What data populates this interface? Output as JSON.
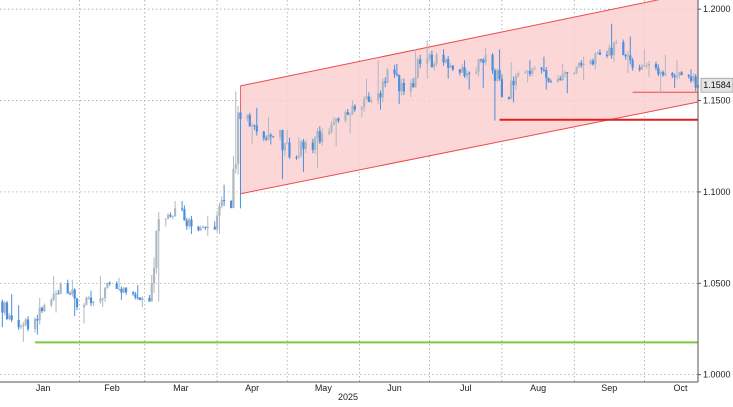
{
  "chart_data": {
    "type": "candlestick",
    "title": "",
    "xlabel": "",
    "ylabel": "",
    "year_label": "2025",
    "x_tick_labels": [
      "Jan",
      "Feb",
      "Mar",
      "Apr",
      "May",
      "Jun",
      "Jul",
      "Aug",
      "Sep",
      "Oct"
    ],
    "y_tick_labels": [
      "1.2000",
      "1.1500",
      "1.1000",
      "1.0500",
      "1.0000"
    ],
    "y_tick_values": [
      1.2,
      1.15,
      1.1,
      1.05,
      1.0
    ],
    "ylim": [
      0.996,
      1.205
    ],
    "xlim": [
      "2024-12-29",
      "2025-10-24"
    ],
    "grid": true,
    "last_price_label": "1.1584",
    "last_price": 1.1584,
    "colors": {
      "up": "#aeb8c3",
      "down": "#4a8fe0",
      "channel_fill": "#fbd0d0",
      "channel_line": "#f04848",
      "support_red": "#e02020",
      "support_green": "#7ac943",
      "grid": "#9a9a9a"
    },
    "channel": {
      "start_date": "2025-04-11",
      "end_date": "2025-10-24",
      "upper": [
        1.158,
        1.2096
      ],
      "lower": [
        1.099,
        1.1492
      ]
    },
    "support_lines": [
      {
        "color": "red",
        "level": 1.1395,
        "from": "2025-07-31",
        "to": "2025-10-24"
      },
      {
        "color": "green",
        "level": 1.0177,
        "from": "2025-01-13",
        "to": "2025-10-24"
      },
      {
        "color": "light-red",
        "level": 1.1545,
        "from": "2025-09-26",
        "to": "2025-10-24"
      }
    ],
    "series": [
      {
        "dates": [
          "2024-12-30",
          "2025-01-06",
          "2025-01-13",
          "2025-01-20",
          "2025-01-27",
          "2025-02-03",
          "2025-02-10",
          "2025-02-17",
          "2025-02-24",
          "2025-03-03",
          "2025-03-10",
          "2025-03-17",
          "2025-03-24",
          "2025-03-31",
          "2025-04-07",
          "2025-04-14",
          "2025-04-21",
          "2025-04-28",
          "2025-05-05",
          "2025-05-12",
          "2025-05-19",
          "2025-05-26",
          "2025-06-02",
          "2025-06-09",
          "2025-06-16",
          "2025-06-23",
          "2025-06-30",
          "2025-07-07",
          "2025-07-14",
          "2025-07-21",
          "2025-07-28",
          "2025-08-04",
          "2025-08-11",
          "2025-08-18",
          "2025-08-25",
          "2025-09-01",
          "2025-09-08",
          "2025-09-15",
          "2025-09-22",
          "2025-09-29",
          "2025-10-06",
          "2025-10-13",
          "2025-10-20"
        ],
        "open": [
          1.04,
          1.03,
          1.025,
          1.038,
          1.05,
          1.037,
          1.04,
          1.05,
          1.045,
          1.042,
          1.085,
          1.091,
          1.081,
          1.081,
          1.095,
          1.14,
          1.133,
          1.13,
          1.119,
          1.127,
          1.132,
          1.139,
          1.145,
          1.15,
          1.167,
          1.155,
          1.17,
          1.175,
          1.167,
          1.165,
          1.175,
          1.152,
          1.165,
          1.168,
          1.16,
          1.165,
          1.17,
          1.175,
          1.182,
          1.168,
          1.17,
          1.165,
          1.164
        ],
        "close": [
          1.03,
          1.025,
          1.038,
          1.05,
          1.037,
          1.04,
          1.05,
          1.045,
          1.042,
          1.085,
          1.091,
          1.081,
          1.081,
          1.095,
          1.14,
          1.133,
          1.13,
          1.119,
          1.127,
          1.132,
          1.139,
          1.145,
          1.15,
          1.167,
          1.155,
          1.17,
          1.175,
          1.167,
          1.165,
          1.175,
          1.152,
          1.165,
          1.168,
          1.16,
          1.165,
          1.17,
          1.175,
          1.182,
          1.168,
          1.17,
          1.165,
          1.164,
          1.1584
        ],
        "high": [
          1.044,
          1.038,
          1.042,
          1.054,
          1.052,
          1.046,
          1.054,
          1.053,
          1.049,
          1.089,
          1.095,
          1.095,
          1.087,
          1.104,
          1.155,
          1.146,
          1.141,
          1.134,
          1.13,
          1.136,
          1.141,
          1.15,
          1.162,
          1.172,
          1.17,
          1.178,
          1.183,
          1.178,
          1.172,
          1.179,
          1.178,
          1.171,
          1.172,
          1.174,
          1.17,
          1.174,
          1.178,
          1.192,
          1.185,
          1.178,
          1.175,
          1.172,
          1.167
        ],
        "low": [
          1.026,
          1.018,
          1.022,
          1.034,
          1.032,
          1.028,
          1.037,
          1.041,
          1.037,
          1.04,
          1.081,
          1.077,
          1.076,
          1.077,
          1.091,
          1.126,
          1.126,
          1.107,
          1.111,
          1.113,
          1.125,
          1.132,
          1.141,
          1.145,
          1.148,
          1.152,
          1.162,
          1.162,
          1.156,
          1.157,
          1.139,
          1.149,
          1.16,
          1.156,
          1.154,
          1.161,
          1.167,
          1.171,
          1.165,
          1.163,
          1.154,
          1.157,
          1.155
        ]
      }
    ]
  }
}
